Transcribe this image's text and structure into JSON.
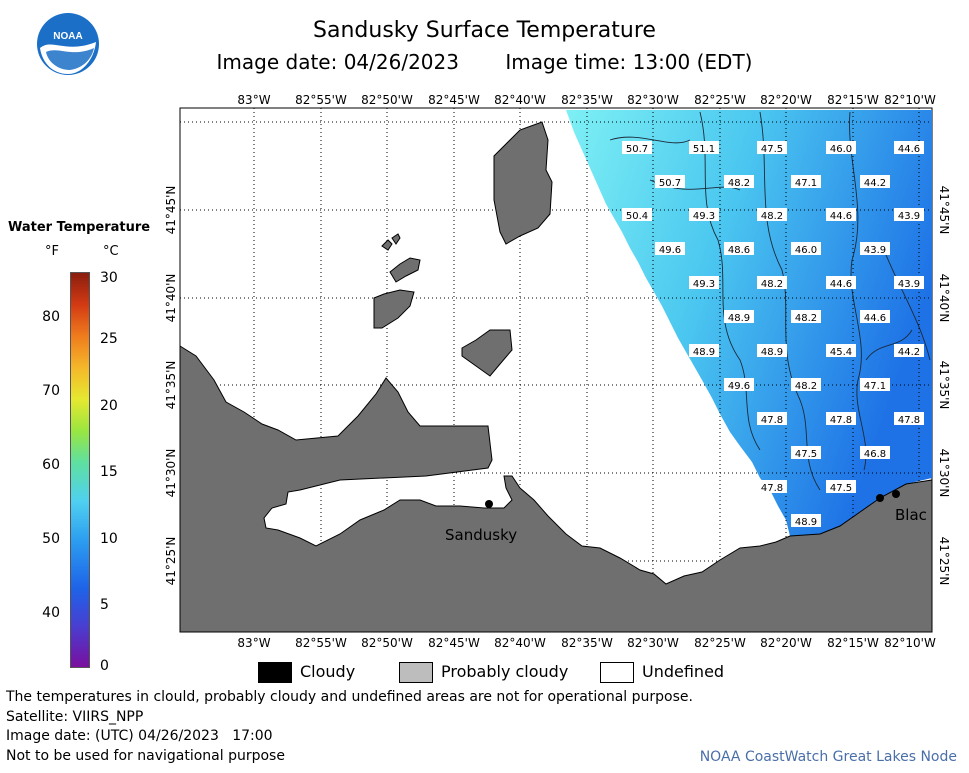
{
  "header": {
    "title": "Sandusky Surface Temperature",
    "image_date": "Image date: 04/26/2023",
    "image_time": "Image time: 13:00 (EDT)"
  },
  "logo": {
    "text": "NOAA"
  },
  "legend": {
    "title": "Water Temperature",
    "unit_f": "°F",
    "unit_c": "°C",
    "f_ticks": [
      "80",
      "70",
      "60",
      "50",
      "40"
    ],
    "c_ticks": [
      "30",
      "25",
      "20",
      "15",
      "10",
      "5",
      "0"
    ]
  },
  "axes": {
    "lon_labels": [
      "83°W",
      "82°55'W",
      "82°50'W",
      "82°45'W",
      "82°40'W",
      "82°35'W",
      "82°30'W",
      "82°25'W",
      "82°20'W",
      "82°15'W",
      "82°10'W"
    ],
    "lat_labels": [
      "41°45'N",
      "41°40'N",
      "41°35'N",
      "41°30'N",
      "41°25'N"
    ]
  },
  "places": {
    "sandusky": "Sandusky",
    "black": "Blac"
  },
  "temps": [
    "50.7",
    "51.1",
    "47.5",
    "46.0",
    "44.6",
    "50.7",
    "48.2",
    "47.1",
    "44.2",
    "50.4",
    "49.3",
    "48.2",
    "44.6",
    "43.9",
    "49.6",
    "48.6",
    "46.0",
    "43.9",
    "49.3",
    "48.2",
    "44.6",
    "43.9",
    "48.9",
    "48.2",
    "44.6",
    "48.9",
    "48.9",
    "45.4",
    "44.2",
    "49.6",
    "48.2",
    "47.1",
    "47.8",
    "47.8",
    "47.8",
    "47.5",
    "46.8",
    "47.8",
    "47.5",
    "48.9"
  ],
  "key": {
    "cloudy": "Cloudy",
    "probably_cloudy": "Probably cloudy",
    "undefined": "Undefined"
  },
  "notes": {
    "line1": "The temperatures in clould, probably cloudy and undefined areas are not for operational purpose.",
    "line2": "Satellite: VIIRS_NPP",
    "line3": "Image date: (UTC) 04/26/2023   17:00",
    "line4": "Not to be used for navigational purpose"
  },
  "credit": "NOAA CoastWatch Great Lakes Node",
  "colors": {
    "land": "#6f6f6f",
    "water_warm": "#6ee6f5",
    "water_cool": "#1f79e8"
  }
}
